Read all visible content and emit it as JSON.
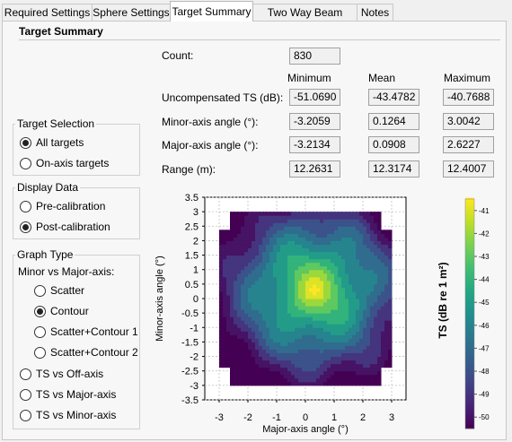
{
  "tabs": [
    {
      "label": "Required Settings",
      "active": false
    },
    {
      "label": "Sphere Settings",
      "active": false
    },
    {
      "label": "Target Summary",
      "active": true
    },
    {
      "label": "Two Way Beam Angle",
      "active": false
    },
    {
      "label": "Notes",
      "active": false
    }
  ],
  "section_title": "Target Summary",
  "stats": {
    "count_label": "Count:",
    "count_value": "830",
    "col_headers": [
      "Minimum",
      "Mean",
      "Maximum"
    ],
    "rows": [
      {
        "label": "Uncompensated TS (dB):",
        "values": [
          "-51.0690",
          "-43.4782",
          "-40.7688"
        ]
      },
      {
        "label": "Minor-axis angle (°):",
        "values": [
          "-3.2059",
          "0.1264",
          "3.0042"
        ]
      },
      {
        "label": "Major-axis angle (°):",
        "values": [
          "-3.2134",
          "0.0908",
          "2.6227"
        ]
      },
      {
        "label": "Range (m):",
        "values": [
          "12.2631",
          "12.3174",
          "12.4007"
        ]
      }
    ]
  },
  "target_selection": {
    "title": "Target Selection",
    "options": [
      {
        "label": "All targets",
        "selected": true
      },
      {
        "label": "On-axis targets",
        "selected": false
      }
    ]
  },
  "display_data": {
    "title": "Display Data",
    "options": [
      {
        "label": "Pre-calibration",
        "selected": false
      },
      {
        "label": "Post-calibration",
        "selected": true
      }
    ]
  },
  "graph_type": {
    "title": "Graph Type",
    "sub_label": "Minor vs Major-axis:",
    "sub_options": [
      {
        "label": "Scatter",
        "selected": false
      },
      {
        "label": "Contour",
        "selected": true
      },
      {
        "label": "Scatter+Contour 1",
        "selected": false
      },
      {
        "label": "Scatter+Contour 2",
        "selected": false
      }
    ],
    "options": [
      {
        "label": "TS vs Off-axis",
        "selected": false
      },
      {
        "label": "TS vs Major-axis",
        "selected": false
      },
      {
        "label": "TS vs Minor-axis",
        "selected": false
      }
    ]
  },
  "chart_data": {
    "type": "heatmap",
    "title": "",
    "xlabel": "Major-axis angle (°)",
    "ylabel": "Minor-axis angle (°)",
    "xlim": [
      -3.5,
      3.5
    ],
    "ylim": [
      -3.5,
      3.5
    ],
    "xticks": [
      -3,
      -2,
      -1,
      0,
      1,
      2,
      3
    ],
    "yticks": [
      3.5,
      3,
      2.5,
      2,
      1.5,
      1,
      0.5,
      0,
      -0.5,
      -1,
      -1.5,
      -2,
      -2.5,
      -3,
      -3.5
    ],
    "grid": true,
    "colorbar": {
      "label": "TS (dB re 1 m²)",
      "ticks": [
        -41,
        -42,
        -43,
        -44,
        -45,
        -46,
        -47,
        -48,
        -49,
        -50
      ],
      "range": [
        -50.5,
        -40.5
      ],
      "colormap": "viridis"
    },
    "peak_ts": -41,
    "edge_ts": -49,
    "peak_center": [
      0.3,
      0.3
    ]
  },
  "colors": {
    "viridis": [
      "#440154",
      "#482475",
      "#414487",
      "#355f8d",
      "#2a788e",
      "#21908d",
      "#22a884",
      "#42be71",
      "#7ad151",
      "#bddf26",
      "#fde725"
    ]
  }
}
